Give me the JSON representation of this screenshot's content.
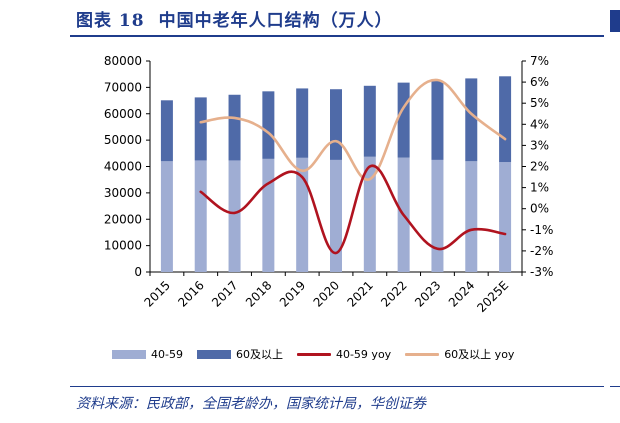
{
  "header": {
    "figure_no": "图表 18",
    "title": "中国中老年人口结构（万人）"
  },
  "footer": {
    "source": "资料来源：民政部，全国老龄办，国家统计局，华创证券"
  },
  "colors": {
    "bar_40_59": "#9fadd3",
    "bar_60plus": "#4f6aa8",
    "line_40_59_yoy": "#b0131f",
    "line_60plus_yoy": "#e6b08d",
    "brand": "#1f3c8c"
  },
  "legend": [
    "40-59",
    "60及以上",
    "40-59 yoy",
    "60及以上 yoy"
  ],
  "chart_data": {
    "type": "bar",
    "stacked": true,
    "categories": [
      "2015",
      "2016",
      "2017",
      "2018",
      "2019",
      "2020",
      "2021",
      "2022",
      "2023",
      "2024",
      "2025E"
    ],
    "series": [
      {
        "name": "40-59",
        "values": [
          42000,
          42300,
          42300,
          42900,
          43300,
          42500,
          43700,
          43400,
          42500,
          42000,
          41700
        ]
      },
      {
        "name": "60及以上",
        "values": [
          23100,
          23900,
          24900,
          25600,
          26300,
          26800,
          26900,
          28400,
          29900,
          31400,
          32500
        ]
      }
    ],
    "lines": [
      {
        "name": "40-59 yoy",
        "axis": "right",
        "values": [
          null,
          0.8,
          -0.2,
          1.2,
          1.5,
          -2.1,
          2.0,
          -0.3,
          -1.9,
          -1.0,
          -1.2
        ]
      },
      {
        "name": "60及以上 yoy",
        "axis": "right",
        "values": [
          null,
          4.1,
          4.3,
          3.6,
          1.8,
          3.2,
          1.4,
          4.8,
          6.1,
          4.5,
          3.3
        ]
      }
    ],
    "y_left": {
      "min": 0,
      "max": 80000,
      "step": 10000,
      "ticks": [
        "0",
        "10000",
        "20000",
        "30000",
        "40000",
        "50000",
        "60000",
        "70000",
        "80000"
      ]
    },
    "y_right": {
      "min": -3,
      "max": 7,
      "step": 1,
      "ticks": [
        "-3%",
        "-2%",
        "-1%",
        "0%",
        "1%",
        "2%",
        "3%",
        "4%",
        "5%",
        "6%",
        "7%"
      ]
    },
    "grid": false,
    "legend_position": "bottom"
  }
}
